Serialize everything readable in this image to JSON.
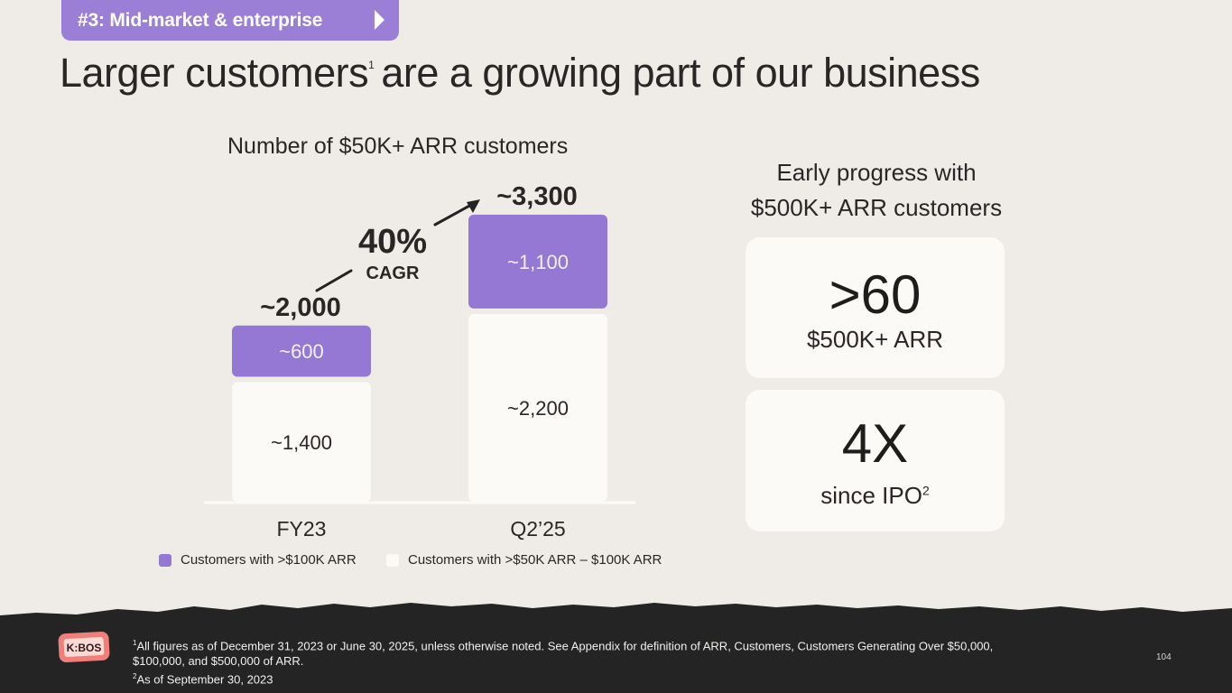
{
  "tag": {
    "label": "#3: Mid-market & enterprise"
  },
  "title": {
    "part1": "Larger customers",
    "sup": "1",
    "part2": "are a growing part of our business"
  },
  "chart_data": {
    "type": "bar",
    "stacked": true,
    "title": "Number of $50K+ ARR customers",
    "categories": [
      "FY23",
      "Q2’25"
    ],
    "series": [
      {
        "name": "Customers with >$50K ARR – $100K ARR",
        "values": [
          1400,
          2200
        ],
        "labels": [
          "~1,400",
          "~2,200"
        ],
        "color": "#fcfaf7"
      },
      {
        "name": "Customers with >$100K ARR",
        "values": [
          600,
          1100
        ],
        "labels": [
          "~600",
          "~1,100"
        ],
        "color": "#9478d4"
      }
    ],
    "totals": [
      2000,
      3300
    ],
    "total_labels": [
      "~2,000",
      "~3,300"
    ],
    "annotation": {
      "value": "40%",
      "label": "CAGR"
    },
    "legend": "bottom"
  },
  "right": {
    "title_line1": "Early progress with",
    "title_line2": "$500K+ ARR customers",
    "card1": {
      "value": ">60",
      "label": "$500K+ ARR"
    },
    "card2": {
      "value": "4X",
      "label": "since IPO",
      "sup": "2"
    }
  },
  "footer": {
    "logo_text": "K:BOS",
    "note1_sup": "1",
    "note1": "All figures as of December 31, 2023 or June 30, 2025, unless otherwise noted. See Appendix for definition of ARR, Customers, Customers Generating Over $50,000, $100,000, and $500,000 of ARR.",
    "note2_sup": "2",
    "note2": "As of September 30, 2023",
    "page_number": "104"
  },
  "colors": {
    "background": "#efece8",
    "accent_purple": "#9478d4",
    "tag_purple": "#9b7fd6",
    "light_bar": "#fcfaf7",
    "footer": "#242424",
    "text_dark": "#2a2626"
  }
}
